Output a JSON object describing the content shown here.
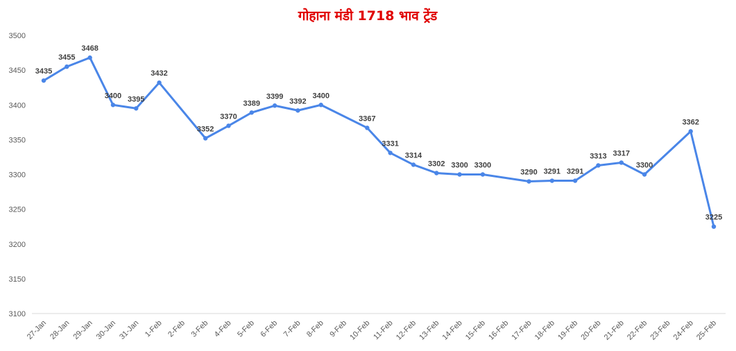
{
  "chart_data": {
    "type": "line",
    "title": "गोहाना मंडी 1718 भाव ट्रेंड",
    "xlabel": "",
    "ylabel": "",
    "ylim": [
      3100,
      3500
    ],
    "yticks": [
      3100,
      3150,
      3200,
      3250,
      3300,
      3350,
      3400,
      3450,
      3500
    ],
    "grid": false,
    "legend": "none",
    "line_color": "#4a86e8",
    "title_color": "#e00000",
    "categories": [
      "27-Jan",
      "28-Jan",
      "29-Jan",
      "30-Jan",
      "31-Jan",
      "1-Feb",
      "2-Feb",
      "3-Feb",
      "4-Feb",
      "5-Feb",
      "6-Feb",
      "7-Feb",
      "8-Feb",
      "9-Feb",
      "10-Feb",
      "11-Feb",
      "12-Feb",
      "13-Feb",
      "14-Feb",
      "15-Feb",
      "16-Feb",
      "17-Feb",
      "18-Feb",
      "19-Feb",
      "20-Feb",
      "21-Feb",
      "22-Feb",
      "23-Feb",
      "24-Feb",
      "25-Feb"
    ],
    "series": [
      {
        "values": [
          3435,
          3455,
          3468,
          3400,
          3395,
          3432,
          null,
          3352,
          3370,
          3389,
          3399,
          3392,
          3400,
          null,
          3367,
          3331,
          3314,
          3302,
          3300,
          3300,
          null,
          3290,
          3291,
          3291,
          3313,
          3317,
          3300,
          null,
          3362,
          3225
        ]
      }
    ]
  }
}
